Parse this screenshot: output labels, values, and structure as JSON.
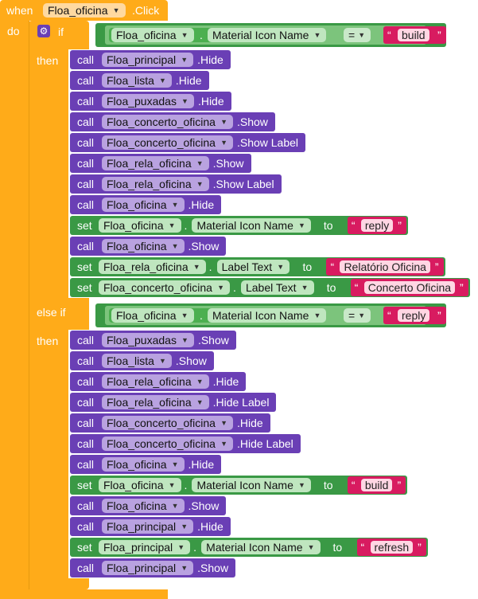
{
  "event": {
    "when": "when",
    "component": "Floa_oficina",
    "event_name": ".Click",
    "do": "do"
  },
  "if_block": {
    "if": "if",
    "then": "then",
    "else_if": "else if"
  },
  "condition1": {
    "component": "Floa_oficina",
    "property": "Material Icon Name",
    "operator": "=",
    "value": "build"
  },
  "condition2": {
    "component": "Floa_oficina",
    "property": "Material Icon Name",
    "operator": "=",
    "value": "reply"
  },
  "branch1": [
    {
      "kind": "call",
      "component": "Floa_principal",
      "method": ".Hide"
    },
    {
      "kind": "call",
      "component": "Floa_lista",
      "method": ".Hide"
    },
    {
      "kind": "call",
      "component": "Floa_puxadas",
      "method": ".Hide"
    },
    {
      "kind": "call",
      "component": "Floa_concerto_oficina",
      "method": ".Show"
    },
    {
      "kind": "call",
      "component": "Floa_concerto_oficina",
      "method": ".Show Label"
    },
    {
      "kind": "call",
      "component": "Floa_rela_oficina",
      "method": ".Show"
    },
    {
      "kind": "call",
      "component": "Floa_rela_oficina",
      "method": ".Show Label"
    },
    {
      "kind": "call",
      "component": "Floa_oficina",
      "method": ".Hide"
    },
    {
      "kind": "set",
      "component": "Floa_oficina",
      "property": "Material Icon Name",
      "to": "to",
      "value": "reply"
    },
    {
      "kind": "call",
      "component": "Floa_oficina",
      "method": ".Show"
    },
    {
      "kind": "set",
      "component": "Floa_rela_oficina",
      "property": "Label Text",
      "to": "to",
      "value": "Relatório Oficina"
    },
    {
      "kind": "set",
      "component": "Floa_concerto_oficina",
      "property": "Label Text",
      "to": "to",
      "value": "Concerto Oficina"
    }
  ],
  "branch2": [
    {
      "kind": "call",
      "component": "Floa_puxadas",
      "method": ".Show"
    },
    {
      "kind": "call",
      "component": "Floa_lista",
      "method": ".Show"
    },
    {
      "kind": "call",
      "component": "Floa_rela_oficina",
      "method": ".Hide"
    },
    {
      "kind": "call",
      "component": "Floa_rela_oficina",
      "method": ".Hide Label"
    },
    {
      "kind": "call",
      "component": "Floa_concerto_oficina",
      "method": ".Hide"
    },
    {
      "kind": "call",
      "component": "Floa_concerto_oficina",
      "method": ".Hide Label"
    },
    {
      "kind": "call",
      "component": "Floa_oficina",
      "method": ".Hide"
    },
    {
      "kind": "set",
      "component": "Floa_oficina",
      "property": "Material Icon Name",
      "to": "to",
      "value": "build"
    },
    {
      "kind": "call",
      "component": "Floa_oficina",
      "method": ".Show"
    },
    {
      "kind": "call",
      "component": "Floa_principal",
      "method": ".Hide"
    },
    {
      "kind": "set",
      "component": "Floa_principal",
      "property": "Material Icon Name",
      "to": "to",
      "value": "refresh"
    },
    {
      "kind": "call",
      "component": "Floa_principal",
      "method": ".Show"
    }
  ],
  "colors": {
    "event": "#ffab19",
    "call": "#6a3fb5",
    "set": "#3a9945",
    "text": "#d81b60"
  },
  "labels": {
    "call": "call",
    "set": "set",
    "dot": "."
  }
}
